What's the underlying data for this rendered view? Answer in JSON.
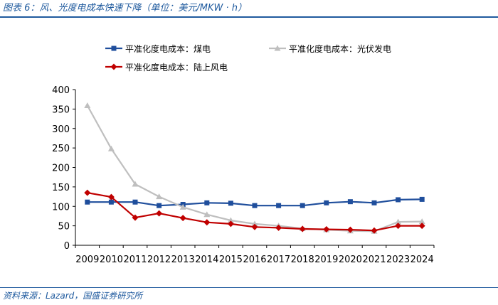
{
  "figure": {
    "title": "图表 6：风、光度电成本快速下降（单位：美元/MKW · h）",
    "source": "资料来源：Lazard，国盛证券研究所"
  },
  "chart_data": {
    "type": "line",
    "title": "风、光度电成本快速下降",
    "unit": "美元/MKW · h",
    "xlabel": "",
    "ylabel": "",
    "categories": [
      "2009",
      "2010",
      "2011",
      "2012",
      "2013",
      "2014",
      "2015",
      "2016",
      "2017",
      "2018",
      "2019",
      "2020",
      "2021",
      "2023",
      "2024"
    ],
    "ylim": [
      0,
      400
    ],
    "yticks": [
      0,
      50,
      100,
      150,
      200,
      250,
      300,
      350,
      400
    ],
    "grid": false,
    "legend_position": "top",
    "series": [
      {
        "name": "平准化度电成本：煤电",
        "color": "#1f4e9c",
        "marker": "square",
        "values": [
          111,
          111,
          111,
          102,
          105,
          109,
          108,
          102,
          102,
          102,
          109,
          112,
          109,
          117,
          118
        ]
      },
      {
        "name": "平准化度电成本：光伏发电",
        "color": "#bfbfbf",
        "marker": "triangle",
        "values": [
          359,
          248,
          157,
          125,
          98,
          79,
          64,
          55,
          50,
          43,
          40,
          37,
          36,
          60,
          61
        ]
      },
      {
        "name": "平准化度电成本：陆上风电",
        "color": "#c00000",
        "marker": "diamond",
        "values": [
          135,
          124,
          71,
          82,
          70,
          59,
          55,
          47,
          45,
          42,
          41,
          40,
          38,
          50,
          50
        ]
      }
    ]
  }
}
